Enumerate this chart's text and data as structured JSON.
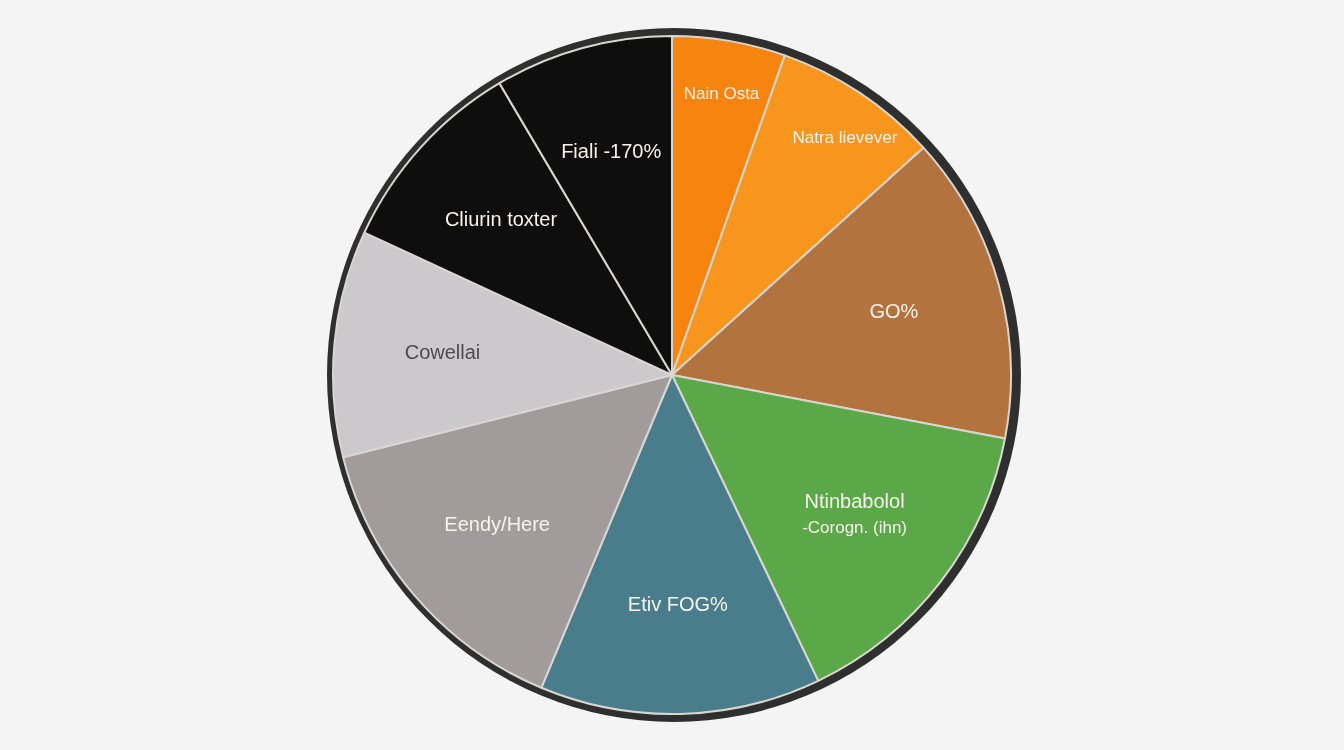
{
  "chart_data": {
    "type": "pie",
    "categories": [
      "Nain Osta",
      "Natra lievever",
      "GO%",
      "Ntinbabolol\n-Corogn. (ihn)",
      "Etiv FOG%",
      "Eendy/Here",
      "Cowellai",
      "Cliurin toxter",
      "Fiali -170%"
    ],
    "values": [
      5.4,
      7.9,
      14.7,
      14.9,
      13.4,
      14.8,
      10.8,
      9.6,
      8.5
    ],
    "colors": [
      "#f7840f",
      "#f8951c",
      "#b3733f",
      "#5aa847",
      "#4a7d8c",
      "#a19b9b",
      "#cbc9cb",
      "#0e0e0e",
      "#0e0e0e"
    ]
  }
}
